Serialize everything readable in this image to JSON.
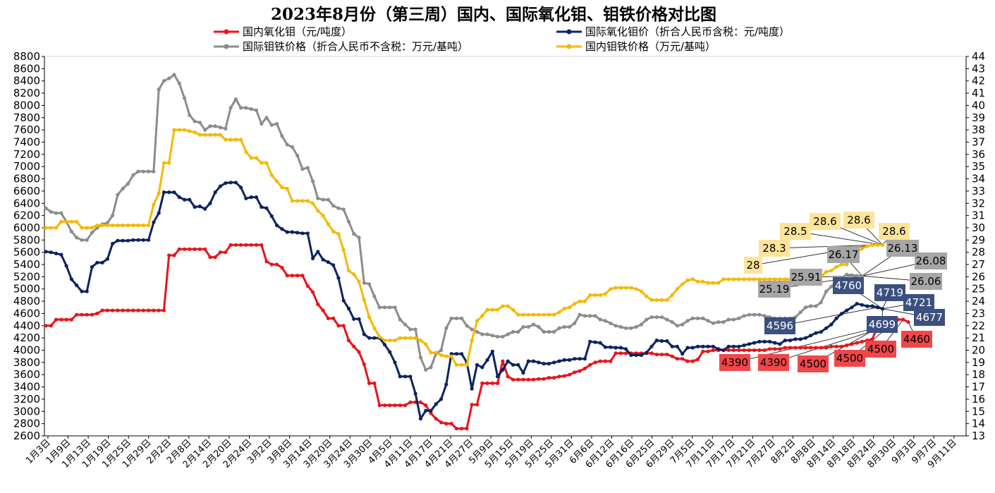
{
  "chart_data": {
    "type": "line",
    "title": "2023年8月份（第三周）国内、国际氧化钼、钼铁价格对比图",
    "xlabel": "",
    "ylabel_left": "",
    "ylabel_right": "",
    "ylim_left": [
      2600,
      8800
    ],
    "yticks_left_step": 200,
    "ylim_right": [
      13,
      44
    ],
    "yticks_right_step": 1,
    "grid": false,
    "legend_position": "top",
    "x_tick_labels": [
      "1月3日",
      "1月9日",
      "1月13日",
      "1月19日",
      "1月25日",
      "1月29日",
      "2月2日",
      "2月8日",
      "2月14日",
      "2月20日",
      "2月24日",
      "3月2日",
      "3月8日",
      "3月14日",
      "3月20日",
      "3月24日",
      "3月30日",
      "4月5日",
      "4月11日",
      "4月17日",
      "4月21日",
      "4月27日",
      "5月9日",
      "5月15日",
      "5月19日",
      "5月25日",
      "5月31日",
      "6月6日",
      "6月12日",
      "6月16日",
      "6月25日",
      "6月29日",
      "7月5日",
      "7月11日",
      "7月17日",
      "7月21日",
      "7月27日",
      "8月2日",
      "8月8日",
      "8月14日",
      "8月18日",
      "8月24日",
      "8月30日",
      "9月3日",
      "9月7日",
      "9月11日"
    ],
    "series": [
      {
        "name": "国内氧化钼（元/吨度）",
        "axis": "left",
        "color": "#e8141a",
        "values": [
          4400,
          4400,
          4500,
          4500,
          4500,
          4500,
          4580,
          4580,
          4580,
          4580,
          4600,
          4650,
          4650,
          4650,
          4650,
          4650,
          4650,
          4650,
          4650,
          4650,
          4650,
          4650,
          4650,
          4650,
          5550,
          5550,
          5650,
          5650,
          5650,
          5650,
          5650,
          5650,
          5520,
          5520,
          5600,
          5600,
          5720,
          5720,
          5720,
          5720,
          5720,
          5720,
          5720,
          5450,
          5400,
          5400,
          5350,
          5220,
          5220,
          5220,
          5220,
          5050,
          4950,
          4750,
          4650,
          4520,
          4520,
          4400,
          4400,
          4160,
          4060,
          3970,
          3770,
          3460,
          3460,
          3100,
          3100,
          3100,
          3100,
          3100,
          3100,
          3150,
          3150,
          3150,
          3100,
          2970,
          2880,
          2820,
          2800,
          2800,
          2720,
          2720,
          2720,
          3110,
          3110,
          3460,
          3460,
          3460,
          3460,
          3820,
          3570,
          3520,
          3520,
          3520,
          3520,
          3520,
          3530,
          3530,
          3550,
          3550,
          3570,
          3580,
          3600,
          3640,
          3660,
          3700,
          3760,
          3800,
          3820,
          3820,
          3820,
          3950,
          3950,
          3950,
          3950,
          3950,
          3950,
          3950,
          3950,
          3930,
          3930,
          3930,
          3900,
          3860,
          3860,
          3820,
          3820,
          3850,
          3980,
          3980,
          4000,
          4000,
          4000,
          4000,
          4000,
          4000,
          4000,
          4000,
          4000,
          4000,
          4000,
          4020,
          4020,
          4020,
          4040,
          4040,
          4040,
          4040,
          4040,
          4040,
          4040,
          4040,
          4040,
          4060,
          4060,
          4060,
          4080,
          4100,
          4120,
          4140,
          4160,
          4180,
          4390,
          4390,
          4390,
          4500,
          4500,
          4500,
          4460
        ]
      },
      {
        "name": "国际氧化钼价（折合人民币含税：元/吨度）",
        "axis": "left",
        "color": "#0d2360",
        "values": [
          5610,
          5600,
          5580,
          5560,
          5380,
          5160,
          5060,
          4960,
          4960,
          5360,
          5430,
          5430,
          5490,
          5740,
          5790,
          5790,
          5790,
          5800,
          5800,
          5800,
          5800,
          6090,
          6240,
          6580,
          6580,
          6580,
          6500,
          6460,
          6460,
          6340,
          6350,
          6310,
          6400,
          6580,
          6680,
          6730,
          6740,
          6740,
          6660,
          6480,
          6500,
          6500,
          6340,
          6320,
          6190,
          6040,
          5980,
          5930,
          5930,
          5920,
          5910,
          5910,
          5500,
          5610,
          5480,
          5440,
          5390,
          5180,
          4810,
          4680,
          4510,
          4510,
          4260,
          4200,
          4200,
          4200,
          4090,
          3970,
          3800,
          3570,
          3570,
          3570,
          3290,
          2880,
          3010,
          3010,
          3120,
          3200,
          3440,
          3940,
          3940,
          3940,
          3800,
          3370,
          3760,
          3720,
          3840,
          3980,
          3570,
          3680,
          3820,
          3760,
          3760,
          3630,
          3820,
          3820,
          3800,
          3780,
          3780,
          3800,
          3820,
          3840,
          3840,
          3860,
          3860,
          3860,
          4140,
          4130,
          4120,
          4050,
          4050,
          4040,
          4040,
          4020,
          3920,
          3920,
          3920,
          3960,
          4060,
          4160,
          4150,
          4150,
          4060,
          4060,
          3940,
          4040,
          4040,
          4060,
          4060,
          4060,
          4060,
          4020,
          4000,
          4060,
          4060,
          4060,
          4080,
          4100,
          4120,
          4140,
          4140,
          4140,
          4120,
          4100,
          4160,
          4160,
          4180,
          4180,
          4200,
          4240,
          4280,
          4300,
          4360,
          4420,
          4520,
          4596,
          4650,
          4700,
          4760,
          4740,
          4719,
          4721,
          4699,
          4677
        ]
      },
      {
        "name": "国际钼铁价格（折合人民币不含税：万元/基吨）",
        "axis": "right",
        "color": "#8c8c8c",
        "values": [
          31.6,
          31.3,
          31.2,
          31.2,
          30.5,
          29.7,
          29.2,
          29.0,
          29.0,
          29.6,
          30.0,
          30.3,
          30.4,
          31.0,
          32.7,
          33.2,
          33.6,
          34.3,
          34.6,
          34.6,
          34.6,
          34.6,
          41.3,
          42.0,
          42.2,
          42.5,
          41.8,
          40.6,
          39.2,
          38.7,
          38.6,
          38.0,
          38.3,
          38.3,
          38.2,
          38.1,
          39.8,
          40.5,
          39.8,
          39.8,
          39.7,
          39.6,
          38.5,
          39.0,
          38.4,
          38.5,
          37.5,
          36.8,
          36.6,
          35.9,
          34.8,
          34.9,
          33.8,
          32.4,
          32.3,
          32.3,
          31.8,
          31.6,
          31.5,
          30.5,
          29.5,
          29.2,
          25.5,
          25.4,
          24.4,
          23.5,
          23.5,
          23.5,
          23.5,
          22.5,
          22.1,
          21.7,
          21.7,
          19.4,
          18.4,
          18.6,
          19.7,
          20.0,
          21.8,
          22.6,
          22.6,
          22.6,
          22.0,
          21.7,
          21.5,
          21.3,
          21.3,
          21.2,
          21.1,
          21.1,
          21.3,
          21.5,
          21.5,
          21.9,
          21.9,
          22.1,
          21.9,
          21.5,
          21.5,
          21.5,
          21.8,
          21.9,
          21.9,
          22.2,
          22.9,
          22.8,
          22.8,
          22.8,
          22.5,
          22.4,
          22.2,
          22.0,
          21.9,
          21.8,
          21.8,
          21.9,
          22.1,
          22.5,
          22.7,
          22.7,
          22.7,
          22.5,
          22.3,
          22.0,
          22.1,
          22.4,
          22.6,
          22.6,
          22.6,
          22.4,
          22.2,
          22.3,
          22.3,
          22.5,
          22.5,
          22.6,
          22.8,
          22.9,
          22.9,
          22.9,
          22.8,
          22.7,
          22.6,
          22.6,
          22.6,
          22.6,
          22.7,
          23.1,
          23.5,
          23.6,
          23.6,
          23.9,
          24.8,
          25.19,
          25.6,
          25.91,
          26.17,
          26.13,
          26.08,
          26.06
        ]
      },
      {
        "name": "国内钼铁价格（万元/基吨）",
        "axis": "right",
        "color": "#f5b800",
        "values": [
          30.0,
          30.0,
          30.0,
          30.5,
          30.5,
          30.5,
          30.5,
          30.0,
          30.0,
          30.0,
          30.2,
          30.2,
          30.2,
          30.2,
          30.2,
          30.2,
          30.2,
          30.2,
          30.2,
          30.2,
          30.2,
          31.9,
          32.8,
          35.3,
          35.3,
          38.0,
          38.0,
          38.0,
          37.9,
          37.8,
          37.6,
          37.6,
          37.6,
          37.6,
          37.6,
          37.2,
          37.2,
          37.2,
          37.2,
          36.2,
          35.7,
          35.7,
          35.3,
          35.3,
          34.3,
          33.8,
          33.3,
          33.2,
          32.2,
          32.2,
          32.2,
          32.2,
          32.0,
          31.4,
          31.0,
          30.3,
          29.7,
          29.5,
          28.2,
          26.5,
          26.2,
          25.6,
          24.1,
          22.7,
          21.8,
          21.1,
          20.8,
          20.8,
          20.8,
          21.0,
          21.0,
          21.0,
          21.0,
          20.8,
          20.5,
          19.8,
          19.8,
          19.6,
          19.5,
          19.5,
          18.8,
          18.8,
          18.8,
          20.8,
          22.4,
          22.8,
          23.3,
          23.3,
          23.3,
          23.6,
          23.6,
          23.3,
          22.9,
          22.9,
          22.9,
          22.9,
          22.9,
          22.9,
          22.9,
          22.9,
          23.1,
          23.4,
          23.5,
          23.8,
          24.0,
          24.0,
          24.5,
          24.5,
          24.5,
          24.6,
          25.0,
          25.1,
          25.1,
          25.1,
          25.1,
          25.0,
          24.8,
          24.4,
          24.1,
          24.1,
          24.1,
          24.1,
          24.5,
          25.0,
          25.4,
          25.7,
          25.8,
          25.6,
          25.6,
          25.5,
          25.5,
          25.5,
          25.8,
          25.8,
          25.8,
          25.8,
          25.8,
          25.8,
          25.8,
          25.8,
          25.8,
          25.8,
          25.8,
          25.8,
          25.8,
          25.8,
          25.8,
          25.8,
          25.8,
          25.8,
          26.0,
          26.0,
          26.4,
          26.5,
          26.8,
          27.0,
          27.0,
          28.0,
          28.0,
          28.3,
          28.5,
          28.6,
          28.6,
          28.6
        ]
      }
    ],
    "callouts": [
      {
        "series": 0,
        "index": 163,
        "text": "4390",
        "bg": "#f0474a",
        "fg": "#000000"
      },
      {
        "series": 0,
        "index": 164,
        "text": "4390",
        "bg": "#f0474a",
        "fg": "#000000"
      },
      {
        "series": 0,
        "index": 165,
        "text": "4500",
        "bg": "#f0474a",
        "fg": "#000000"
      },
      {
        "series": 0,
        "index": 166,
        "text": "4500",
        "bg": "#f0474a",
        "fg": "#000000"
      },
      {
        "series": 0,
        "index": 167,
        "text": "4500",
        "bg": "#f0474a",
        "fg": "#000000"
      },
      {
        "series": 0,
        "index": 168,
        "text": "4460",
        "bg": "#f0474a",
        "fg": "#000000"
      },
      {
        "series": 1,
        "index": 162,
        "text": "4596",
        "bg": "#3c5080",
        "fg": "#ffffff"
      },
      {
        "series": 1,
        "index": 165,
        "text": "4760",
        "bg": "#3c5080",
        "fg": "#ffffff"
      },
      {
        "series": 1,
        "index": 166,
        "text": "4719",
        "bg": "#3c5080",
        "fg": "#ffffff"
      },
      {
        "series": 1,
        "index": 167,
        "text": "4721",
        "bg": "#3c5080",
        "fg": "#ffffff"
      },
      {
        "series": 1,
        "index": 168,
        "text": "4699",
        "bg": "#3c5080",
        "fg": "#ffffff"
      },
      {
        "series": 1,
        "index": 169,
        "text": "4677",
        "bg": "#3c5080",
        "fg": "#ffffff"
      },
      {
        "series": 2,
        "index": 161,
        "text": "25.19",
        "bg": "#a6a6a6",
        "fg": "#000000"
      },
      {
        "series": 2,
        "index": 163,
        "text": "25.91",
        "bg": "#a6a6a6",
        "fg": "#000000"
      },
      {
        "series": 2,
        "index": 165,
        "text": "26.17",
        "bg": "#a6a6a6",
        "fg": "#000000"
      },
      {
        "series": 2,
        "index": 166,
        "text": "26.13",
        "bg": "#a6a6a6",
        "fg": "#000000"
      },
      {
        "series": 2,
        "index": 167,
        "text": "26.08",
        "bg": "#a6a6a6",
        "fg": "#000000"
      },
      {
        "series": 2,
        "index": 168,
        "text": "26.06",
        "bg": "#a6a6a6",
        "fg": "#000000"
      },
      {
        "series": 3,
        "index": 161,
        "text": "28",
        "bg": "#fde49a",
        "fg": "#000000"
      },
      {
        "series": 3,
        "index": 162,
        "text": "28.3",
        "bg": "#fde49a",
        "fg": "#000000"
      },
      {
        "series": 3,
        "index": 163,
        "text": "28.5",
        "bg": "#fde49a",
        "fg": "#000000"
      },
      {
        "series": 3,
        "index": 164,
        "text": "28.6",
        "bg": "#fde49a",
        "fg": "#000000"
      },
      {
        "series": 3,
        "index": 165,
        "text": "28.6",
        "bg": "#fde49a",
        "fg": "#000000"
      },
      {
        "series": 3,
        "index": 166,
        "text": "28.6",
        "bg": "#fde49a",
        "fg": "#000000"
      }
    ]
  }
}
